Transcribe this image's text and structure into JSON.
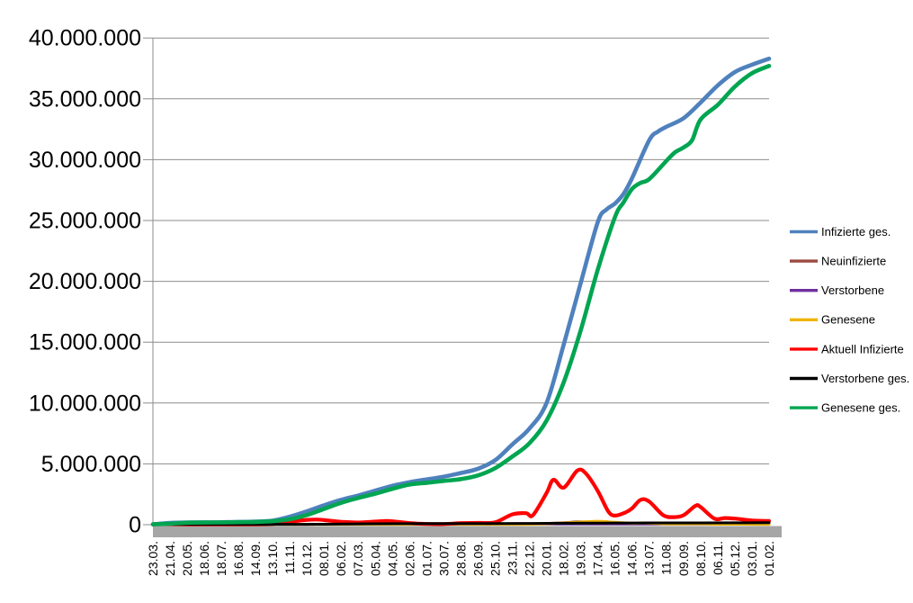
{
  "chart_data": {
    "type": "line",
    "title": "",
    "xlabel": "",
    "ylabel": "",
    "grid": "horizontal",
    "legend_position": "right",
    "point_x_unit": "category-index",
    "point_y_unit": "millions",
    "y_range_millions": [
      0,
      40
    ],
    "y_tick_labels": [
      "0",
      "5.000.000",
      "10.000.000",
      "15.000.000",
      "20.000.000",
      "25.000.000",
      "30.000.000",
      "35.000.000",
      "40.000.000"
    ],
    "x_tick_labels": [
      "23.03.",
      "21.04.",
      "20.05.",
      "18.06.",
      "18.07.",
      "16.08.",
      "14.09.",
      "13.10.",
      "11.11.",
      "10.12.",
      "08.01.",
      "06.02.",
      "07.03.",
      "05.04.",
      "04.05.",
      "02.06.",
      "01.07.",
      "30.07.",
      "28.08.",
      "26.09.",
      "25.10.",
      "23.11.",
      "22.12.",
      "20.01.",
      "18.02.",
      "19.03.",
      "17.04.",
      "16.05.",
      "14.06.",
      "13.07.",
      "11.08.",
      "09.09.",
      "08.10.",
      "06.11.",
      "05.12.",
      "03.01.",
      "01.02."
    ],
    "colors": {
      "grid": "#8c8c8c",
      "axis": "#8c8c8c",
      "axis_band": "#a6a6a6",
      "background": "#ffffff",
      "text": "#000000"
    },
    "series": [
      {
        "name": "Infizierte ges.",
        "color": "#4F81BD",
        "width": 4.6,
        "points": [
          [
            0,
            0.03
          ],
          [
            1,
            0.15
          ],
          [
            2,
            0.18
          ],
          [
            3,
            0.19
          ],
          [
            4,
            0.2
          ],
          [
            5,
            0.23
          ],
          [
            6,
            0.26
          ],
          [
            7,
            0.33
          ],
          [
            8,
            0.66
          ],
          [
            9,
            1.1
          ],
          [
            10,
            1.6
          ],
          [
            11,
            2.05
          ],
          [
            12,
            2.4
          ],
          [
            13,
            2.8
          ],
          [
            14,
            3.2
          ],
          [
            15,
            3.5
          ],
          [
            16,
            3.72
          ],
          [
            17,
            3.95
          ],
          [
            18,
            4.25
          ],
          [
            19,
            4.6
          ],
          [
            20,
            5.3
          ],
          [
            21,
            6.6
          ],
          [
            22,
            7.9
          ],
          [
            23,
            10.0
          ],
          [
            24,
            14.8
          ],
          [
            25,
            19.9
          ],
          [
            26,
            24.9
          ],
          [
            26.5,
            25.9
          ],
          [
            27,
            26.4
          ],
          [
            27.5,
            27.2
          ],
          [
            28,
            28.5
          ],
          [
            29,
            31.6
          ],
          [
            29.5,
            32.3
          ],
          [
            30,
            32.7
          ],
          [
            31,
            33.4
          ],
          [
            32,
            34.7
          ],
          [
            33,
            36.1
          ],
          [
            34,
            37.2
          ],
          [
            35,
            37.8
          ],
          [
            36,
            38.3
          ]
        ]
      },
      {
        "name": "Neuinfizierte",
        "color": "#9C4A3F",
        "width": 2.6,
        "points": [
          [
            0,
            0.002
          ],
          [
            7,
            0.008
          ],
          [
            8,
            0.015
          ],
          [
            9,
            0.025
          ],
          [
            10,
            0.02
          ],
          [
            11,
            0.012
          ],
          [
            13,
            0.018
          ],
          [
            14,
            0.016
          ],
          [
            15,
            0.008
          ],
          [
            19,
            0.01
          ],
          [
            20,
            0.015
          ],
          [
            21,
            0.04
          ],
          [
            22,
            0.05
          ],
          [
            23,
            0.12
          ],
          [
            24,
            0.18
          ],
          [
            24.8,
            0.25
          ],
          [
            25.5,
            0.23
          ],
          [
            26,
            0.18
          ],
          [
            27,
            0.08
          ],
          [
            28,
            0.1
          ],
          [
            28.5,
            0.12
          ],
          [
            29,
            0.1
          ],
          [
            30,
            0.06
          ],
          [
            31,
            0.06
          ],
          [
            31.7,
            0.08
          ],
          [
            32,
            0.07
          ],
          [
            33,
            0.03
          ],
          [
            34,
            0.03
          ],
          [
            35,
            0.02
          ],
          [
            36,
            0.015
          ]
        ]
      },
      {
        "name": "Verstorbene",
        "color": "#7030A0",
        "width": 2.4,
        "points": [
          [
            0,
            0.001
          ],
          [
            18,
            0.001
          ],
          [
            36,
            0.001
          ]
        ]
      },
      {
        "name": "Genesene",
        "color": "#F0B400",
        "width": 3.0,
        "points": [
          [
            0,
            0.002
          ],
          [
            8,
            0.01
          ],
          [
            9,
            0.02
          ],
          [
            10,
            0.025
          ],
          [
            13,
            0.015
          ],
          [
            14,
            0.02
          ],
          [
            20,
            0.012
          ],
          [
            21,
            0.03
          ],
          [
            22,
            0.04
          ],
          [
            23,
            0.08
          ],
          [
            24,
            0.15
          ],
          [
            25,
            0.22
          ],
          [
            25.8,
            0.28
          ],
          [
            26.3,
            0.27
          ],
          [
            27,
            0.2
          ],
          [
            28,
            0.12
          ],
          [
            28.8,
            0.13
          ],
          [
            30,
            0.07
          ],
          [
            31,
            0.06
          ],
          [
            32,
            0.07
          ],
          [
            33,
            0.04
          ],
          [
            34,
            0.04
          ],
          [
            35,
            0.025
          ],
          [
            36,
            0.02
          ]
        ]
      },
      {
        "name": "Aktuell Infizierte",
        "color": "#FF0000",
        "width": 4.2,
        "points": [
          [
            0,
            0.03
          ],
          [
            0.4,
            0.07
          ],
          [
            1,
            0.05
          ],
          [
            2,
            0.02
          ],
          [
            3,
            0.01
          ],
          [
            4,
            0.01
          ],
          [
            5,
            0.01
          ],
          [
            6,
            0.02
          ],
          [
            7,
            0.06
          ],
          [
            8,
            0.25
          ],
          [
            9,
            0.4
          ],
          [
            9.6,
            0.42
          ],
          [
            10,
            0.38
          ],
          [
            11,
            0.24
          ],
          [
            12,
            0.18
          ],
          [
            13,
            0.26
          ],
          [
            13.6,
            0.3
          ],
          [
            14,
            0.28
          ],
          [
            15,
            0.13
          ],
          [
            16,
            0.06
          ],
          [
            17,
            0.05
          ],
          [
            18,
            0.13
          ],
          [
            19,
            0.15
          ],
          [
            20,
            0.2
          ],
          [
            21,
            0.85
          ],
          [
            21.8,
            0.95
          ],
          [
            22.2,
            0.78
          ],
          [
            23,
            2.6
          ],
          [
            23.4,
            3.7
          ],
          [
            24,
            3.05
          ],
          [
            24.8,
            4.45
          ],
          [
            25.3,
            4.2
          ],
          [
            26,
            2.75
          ],
          [
            26.6,
            1.1
          ],
          [
            27,
            0.75
          ],
          [
            27.6,
            1.0
          ],
          [
            28,
            1.35
          ],
          [
            28.5,
            2.05
          ],
          [
            29,
            1.9
          ],
          [
            29.8,
            0.8
          ],
          [
            30.4,
            0.62
          ],
          [
            31,
            0.78
          ],
          [
            31.7,
            1.55
          ],
          [
            32,
            1.45
          ],
          [
            32.8,
            0.5
          ],
          [
            33.4,
            0.55
          ],
          [
            34,
            0.5
          ],
          [
            35,
            0.35
          ],
          [
            36,
            0.3
          ]
        ]
      },
      {
        "name": "Verstorbene ges.",
        "color": "#000000",
        "width": 3.0,
        "points": [
          [
            0,
            0.0
          ],
          [
            7,
            0.01
          ],
          [
            9,
            0.03
          ],
          [
            10,
            0.04
          ],
          [
            12,
            0.07
          ],
          [
            14,
            0.083
          ],
          [
            17,
            0.092
          ],
          [
            20,
            0.096
          ],
          [
            22,
            0.1
          ],
          [
            24,
            0.12
          ],
          [
            26,
            0.13
          ],
          [
            28,
            0.14
          ],
          [
            30,
            0.147
          ],
          [
            32,
            0.151
          ],
          [
            34,
            0.158
          ],
          [
            36,
            0.165
          ]
        ]
      },
      {
        "name": "Genesene ges.",
        "color": "#00A551",
        "width": 4.6,
        "points": [
          [
            0,
            0.01
          ],
          [
            1,
            0.09
          ],
          [
            2,
            0.16
          ],
          [
            3,
            0.18
          ],
          [
            4,
            0.19
          ],
          [
            5,
            0.21
          ],
          [
            6,
            0.23
          ],
          [
            7,
            0.29
          ],
          [
            8,
            0.45
          ],
          [
            9,
            0.8
          ],
          [
            10,
            1.3
          ],
          [
            11,
            1.8
          ],
          [
            12,
            2.2
          ],
          [
            13,
            2.55
          ],
          [
            14,
            2.95
          ],
          [
            15,
            3.3
          ],
          [
            16,
            3.45
          ],
          [
            17,
            3.6
          ],
          [
            18,
            3.75
          ],
          [
            19,
            4.05
          ],
          [
            20,
            4.65
          ],
          [
            21,
            5.6
          ],
          [
            22,
            6.7
          ],
          [
            23,
            8.55
          ],
          [
            24,
            11.7
          ],
          [
            25,
            16.0
          ],
          [
            26,
            21.0
          ],
          [
            27,
            25.3
          ],
          [
            27.5,
            26.5
          ],
          [
            28,
            27.6
          ],
          [
            28.5,
            28.1
          ],
          [
            29,
            28.4
          ],
          [
            30,
            29.9
          ],
          [
            30.5,
            30.6
          ],
          [
            31,
            31.0
          ],
          [
            31.5,
            31.6
          ],
          [
            32,
            33.3
          ],
          [
            33,
            34.5
          ],
          [
            34,
            36.0
          ],
          [
            35,
            37.1
          ],
          [
            36,
            37.7
          ]
        ]
      }
    ],
    "legend": {
      "items": [
        "Infizierte ges.",
        "Neuinfizierte",
        "Verstorbene",
        "Genesene",
        "Aktuell Infizierte",
        "Verstorbene ges.",
        "Genesene ges."
      ]
    }
  }
}
